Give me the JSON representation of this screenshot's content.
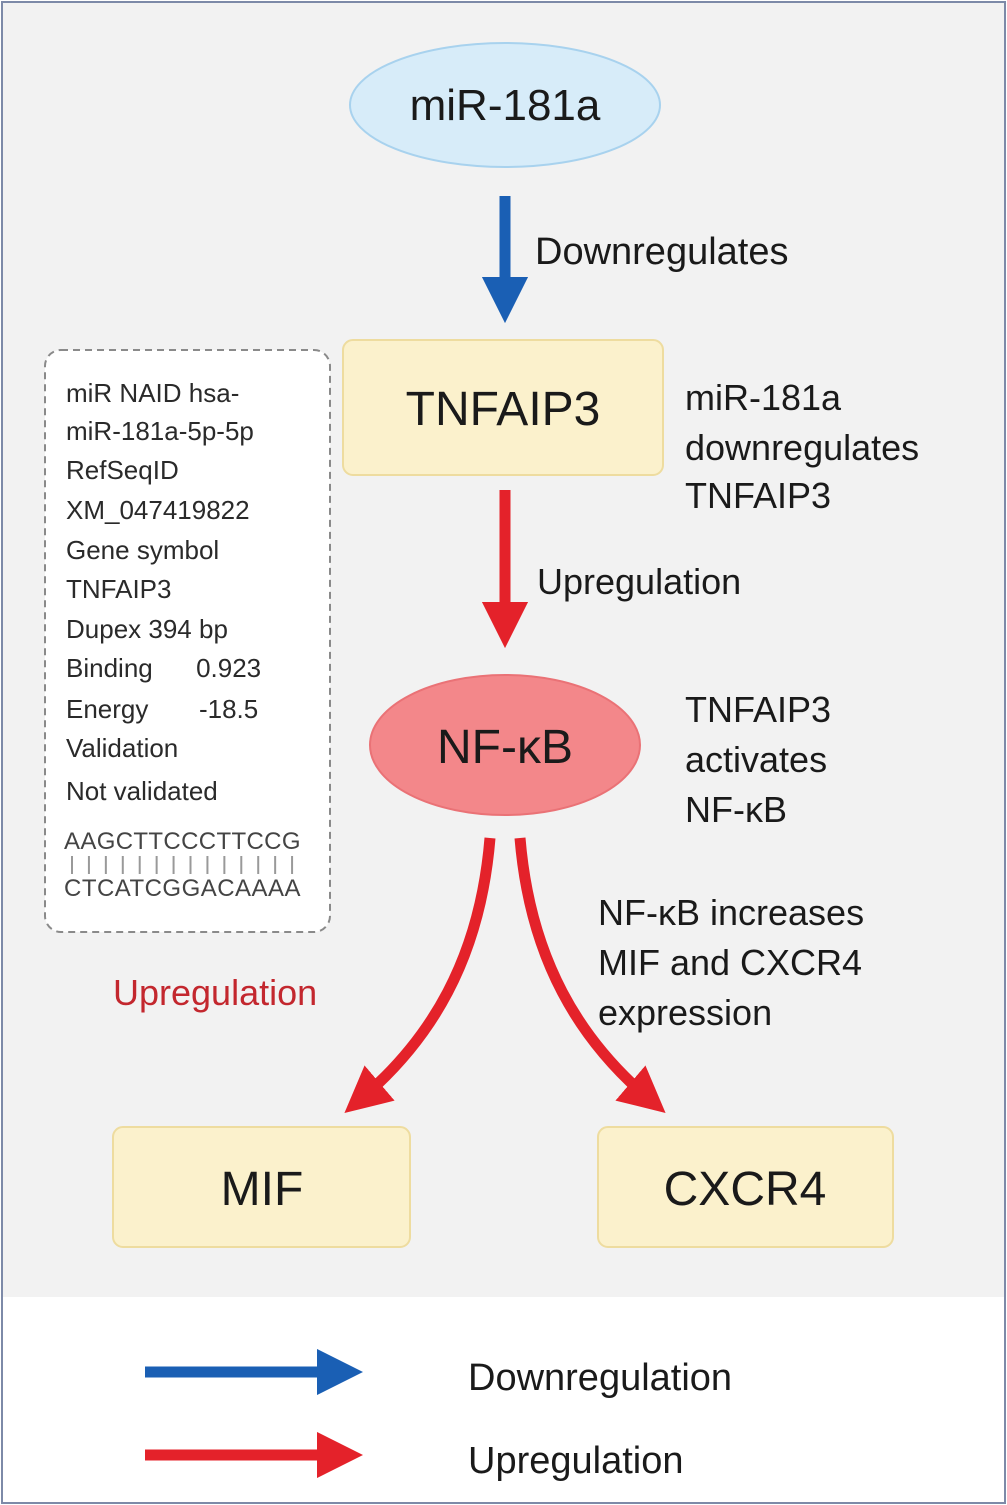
{
  "colors": {
    "downregulation": "#1a5fb4",
    "upregulation": "#e4222a",
    "upregulation_label": "#c3272e",
    "mirna_node": "#d7ecf9",
    "gene_box": "#fbf1cc",
    "nfkb_node": "#f3878a",
    "background": "#f2f2f2"
  },
  "nodes": {
    "mirna": "miR-181a",
    "tnfaip3": "TNFAIP3",
    "nfkb": "NF-κB",
    "mif": "MIF",
    "cxcr4": "CXCR4"
  },
  "edges": {
    "mirna_to_tnfaip3": "Downregulates",
    "tnfaip3_to_nfkb": "Upregulation",
    "nfkb_to_targets": "Upregulation"
  },
  "annotations": {
    "tnfaip3_note": [
      "miR-181a",
      "downregulates",
      "TNFAIP3"
    ],
    "nfkb_note": [
      "TNFAIP3",
      "activates",
      "NF-κB"
    ],
    "targets_note": [
      "NF-κB increases",
      "MIF and CXCR4",
      "expression"
    ]
  },
  "info_box": {
    "lines": [
      "miR NAID  hsa-",
      "miR-181a-5p-5p",
      "RefSeqID",
      "XM_047419822",
      "Gene symbol",
      "TNFAIP3",
      "Dupex 394 bp",
      "Binding      0.923",
      "Energy       -18.5",
      "Validation",
      "Not validated"
    ],
    "sequence_top": "AAGCTTCCCTTCCG",
    "sequence_bottom": "CTCATCGGACAAAA"
  },
  "legend": {
    "items": [
      {
        "label": "Downregulation",
        "color": "#1a5fb4"
      },
      {
        "label": "Upregulation",
        "color": "#e4222a"
      }
    ]
  }
}
